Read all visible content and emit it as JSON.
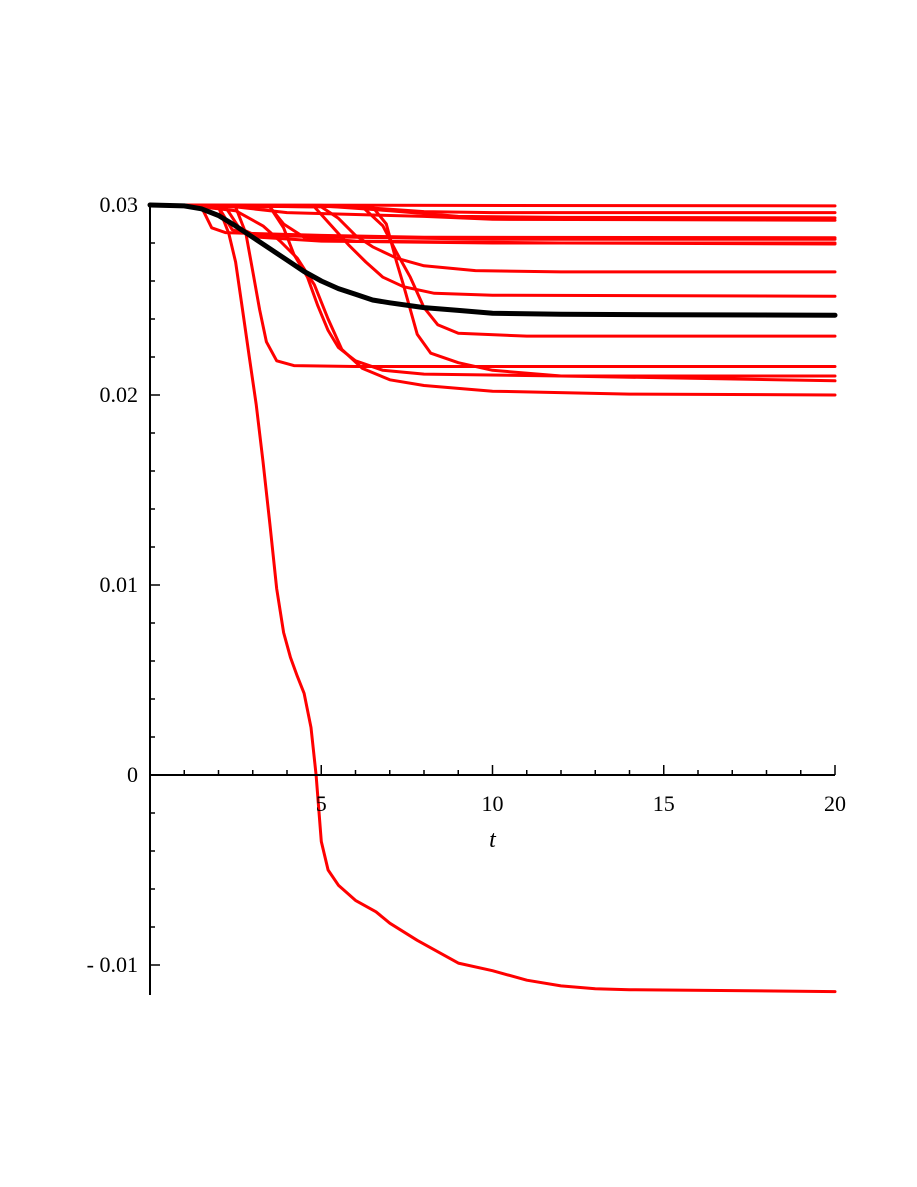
{
  "chart_data": {
    "type": "line",
    "title": "",
    "xlabel": "t",
    "ylabel": "",
    "xlim": [
      0,
      20
    ],
    "ylim": [
      -0.0115,
      0.03
    ],
    "grid": false,
    "legend": "none",
    "x_ticks": [
      {
        "value": 5,
        "label": "5"
      },
      {
        "value": 10,
        "label": "10"
      },
      {
        "value": 15,
        "label": "15"
      },
      {
        "value": 20,
        "label": "20"
      }
    ],
    "y_ticks": [
      {
        "value": 0.03,
        "label": "0.03"
      },
      {
        "value": 0.02,
        "label": "0.02"
      },
      {
        "value": 0.01,
        "label": "0.01"
      },
      {
        "value": 0,
        "label": "0"
      },
      {
        "value": -0.01,
        "label": "- 0.01"
      }
    ],
    "colors": {
      "sample_paths": "#ff0000",
      "mean_path": "#000000"
    },
    "series": [
      {
        "color": "#ff0000",
        "width": 3,
        "points": [
          [
            0,
            0.03
          ],
          [
            20,
            0.02995
          ]
        ]
      },
      {
        "color": "#ff0000",
        "width": 3,
        "points": [
          [
            0,
            0.03
          ],
          [
            5,
            0.02998
          ],
          [
            6,
            0.0299
          ],
          [
            8,
            0.02965
          ],
          [
            10,
            0.0296
          ],
          [
            20,
            0.0296
          ]
        ]
      },
      {
        "color": "#ff0000",
        "width": 3,
        "points": [
          [
            0,
            0.03
          ],
          [
            5,
            0.02995
          ],
          [
            7,
            0.0297
          ],
          [
            9,
            0.0294
          ],
          [
            12,
            0.02935
          ],
          [
            20,
            0.02932
          ]
        ]
      },
      {
        "color": "#ff0000",
        "width": 3,
        "points": [
          [
            0,
            0.03
          ],
          [
            2.5,
            0.0299
          ],
          [
            4,
            0.0296
          ],
          [
            6,
            0.0295
          ],
          [
            8,
            0.0294
          ],
          [
            10,
            0.02925
          ],
          [
            20,
            0.0292
          ]
        ]
      },
      {
        "color": "#ff0000",
        "width": 3,
        "points": [
          [
            0,
            0.03
          ],
          [
            1.5,
            0.0299
          ],
          [
            1.8,
            0.0288
          ],
          [
            2.2,
            0.02855
          ],
          [
            3,
            0.0285
          ],
          [
            5,
            0.0284
          ],
          [
            8,
            0.0283
          ],
          [
            20,
            0.02828
          ]
        ]
      },
      {
        "color": "#ff0000",
        "width": 3,
        "points": [
          [
            0,
            0.03
          ],
          [
            2,
            0.0299
          ],
          [
            2.4,
            0.0287
          ],
          [
            3,
            0.0284
          ],
          [
            6,
            0.0283
          ],
          [
            10,
            0.0282
          ],
          [
            20,
            0.0282
          ]
        ]
      },
      {
        "color": "#ff0000",
        "width": 3,
        "points": [
          [
            0,
            0.03
          ],
          [
            2.2,
            0.0299
          ],
          [
            2.6,
            0.0288
          ],
          [
            3.2,
            0.0283
          ],
          [
            5,
            0.0281
          ],
          [
            10,
            0.028
          ],
          [
            20,
            0.028
          ]
        ]
      },
      {
        "color": "#ff0000",
        "width": 3,
        "points": [
          [
            0,
            0.03
          ],
          [
            3.5,
            0.0299
          ],
          [
            3.9,
            0.029
          ],
          [
            4.5,
            0.0283
          ],
          [
            6,
            0.0281
          ],
          [
            12,
            0.028
          ],
          [
            20,
            0.02795
          ]
        ]
      },
      {
        "color": "#ff0000",
        "width": 3,
        "points": [
          [
            0,
            0.03
          ],
          [
            5,
            0.0299
          ],
          [
            5.5,
            0.0293
          ],
          [
            6,
            0.0284
          ],
          [
            6.5,
            0.0278
          ],
          [
            7.2,
            0.0272
          ],
          [
            8,
            0.0268
          ],
          [
            9.5,
            0.02655
          ],
          [
            12,
            0.02648
          ],
          [
            20,
            0.02648
          ]
        ]
      },
      {
        "color": "#ff0000",
        "width": 3,
        "points": [
          [
            0,
            0.03
          ],
          [
            4.8,
            0.0299
          ],
          [
            5.3,
            0.0289
          ],
          [
            5.8,
            0.0279
          ],
          [
            6.3,
            0.027
          ],
          [
            6.8,
            0.0262
          ],
          [
            7.4,
            0.0257
          ],
          [
            8.3,
            0.02535
          ],
          [
            10,
            0.02525
          ],
          [
            20,
            0.0252
          ]
        ]
      },
      {
        "color": "#ff0000",
        "width": 3,
        "points": [
          [
            0,
            0.03
          ],
          [
            6.2,
            0.0299
          ],
          [
            6.8,
            0.0289
          ],
          [
            7.2,
            0.0275
          ],
          [
            7.6,
            0.0262
          ],
          [
            8,
            0.0246
          ],
          [
            8.4,
            0.0237
          ],
          [
            9,
            0.02325
          ],
          [
            11,
            0.0231
          ],
          [
            20,
            0.0231
          ]
        ]
      },
      {
        "color": "#ff0000",
        "width": 3,
        "points": [
          [
            0,
            0.03
          ],
          [
            2.5,
            0.0299
          ],
          [
            2.8,
            0.0285
          ],
          [
            3,
            0.0265
          ],
          [
            3.2,
            0.0245
          ],
          [
            3.4,
            0.0228
          ],
          [
            3.7,
            0.0218
          ],
          [
            4.2,
            0.02155
          ],
          [
            6,
            0.0215
          ],
          [
            10,
            0.0215
          ],
          [
            20,
            0.0215
          ]
        ]
      },
      {
        "color": "#ff0000",
        "width": 3,
        "points": [
          [
            0,
            0.03
          ],
          [
            3.5,
            0.0299
          ],
          [
            3.9,
            0.0288
          ],
          [
            4.2,
            0.0274
          ],
          [
            4.6,
            0.0262
          ],
          [
            4.9,
            0.0247
          ],
          [
            5.2,
            0.0234
          ],
          [
            5.5,
            0.0225
          ],
          [
            6,
            0.0218
          ],
          [
            6.8,
            0.0213
          ],
          [
            8,
            0.0211
          ],
          [
            12,
            0.021
          ],
          [
            20,
            0.021
          ]
        ]
      },
      {
        "color": "#ff0000",
        "width": 3,
        "points": [
          [
            0,
            0.03
          ],
          [
            6.5,
            0.0299
          ],
          [
            6.9,
            0.029
          ],
          [
            7.2,
            0.027
          ],
          [
            7.4,
            0.0258
          ],
          [
            7.6,
            0.0245
          ],
          [
            7.8,
            0.0232
          ],
          [
            8.2,
            0.0222
          ],
          [
            9,
            0.0217
          ],
          [
            10,
            0.0213
          ],
          [
            12,
            0.021
          ],
          [
            20,
            0.02075
          ]
        ]
      },
      {
        "color": "#ff0000",
        "width": 3,
        "points": [
          [
            0,
            0.03
          ],
          [
            1.5,
            0.0299
          ],
          [
            2.5,
            0.0297
          ],
          [
            3.3,
            0.0289
          ],
          [
            3.8,
            0.0281
          ],
          [
            4.3,
            0.0272
          ],
          [
            4.8,
            0.0258
          ],
          [
            5.2,
            0.024
          ],
          [
            5.6,
            0.0224
          ],
          [
            6.2,
            0.0214
          ],
          [
            7,
            0.0208
          ],
          [
            8,
            0.0205
          ],
          [
            10,
            0.0202
          ],
          [
            14,
            0.02005
          ],
          [
            20,
            0.02
          ]
        ]
      },
      {
        "color": "#ff0000",
        "width": 3,
        "points": [
          [
            0,
            0.03
          ],
          [
            2,
            0.0299
          ],
          [
            2.3,
            0.0285
          ],
          [
            2.5,
            0.027
          ],
          [
            2.7,
            0.0245
          ],
          [
            2.9,
            0.022
          ],
          [
            3.1,
            0.0195
          ],
          [
            3.3,
            0.0165
          ],
          [
            3.5,
            0.0132
          ],
          [
            3.7,
            0.0098
          ],
          [
            3.9,
            0.0075
          ],
          [
            4.1,
            0.0062
          ],
          [
            4.3,
            0.0052
          ],
          [
            4.5,
            0.0043
          ],
          [
            4.7,
            0.0025
          ],
          [
            4.85,
            0.0
          ],
          [
            5,
            -0.0035
          ],
          [
            5.2,
            -0.005
          ],
          [
            5.5,
            -0.0058
          ],
          [
            6,
            -0.0066
          ],
          [
            6.6,
            -0.0072
          ],
          [
            7,
            -0.0078
          ],
          [
            7.8,
            -0.0087
          ],
          [
            8.5,
            -0.0094
          ],
          [
            9,
            -0.0099
          ],
          [
            10,
            -0.0103
          ],
          [
            11,
            -0.0108
          ],
          [
            12,
            -0.0111
          ],
          [
            13,
            -0.01125
          ],
          [
            14,
            -0.0113
          ],
          [
            20,
            -0.0114
          ]
        ]
      },
      {
        "color": "#000000",
        "width": 5,
        "points": [
          [
            0,
            0.03
          ],
          [
            1,
            0.02995
          ],
          [
            1.5,
            0.0298
          ],
          [
            2,
            0.02945
          ],
          [
            2.5,
            0.0289
          ],
          [
            3,
            0.0283
          ],
          [
            3.5,
            0.0277
          ],
          [
            4,
            0.0271
          ],
          [
            4.5,
            0.0265
          ],
          [
            5,
            0.026
          ],
          [
            5.5,
            0.0256
          ],
          [
            6,
            0.0253
          ],
          [
            6.5,
            0.025
          ],
          [
            7,
            0.02485
          ],
          [
            8,
            0.0246
          ],
          [
            9,
            0.02445
          ],
          [
            10,
            0.0243
          ],
          [
            12,
            0.02425
          ],
          [
            15,
            0.02422
          ],
          [
            20,
            0.0242
          ]
        ]
      }
    ]
  }
}
